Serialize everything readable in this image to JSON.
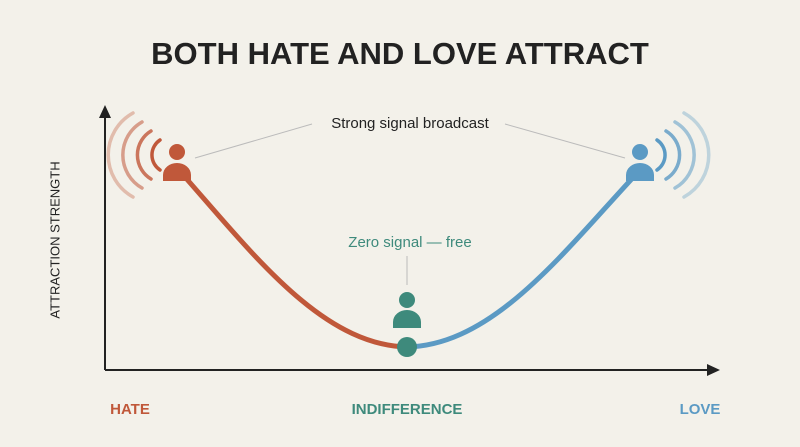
{
  "title": "BOTH HATE AND LOVE ATTRACT",
  "y_axis_label": "ATTRACTION STRENGTH",
  "annotations": {
    "top": "Strong signal broadcast",
    "bottom": "Zero signal — free"
  },
  "x_labels": {
    "left": "HATE",
    "middle": "INDIFFERENCE",
    "right": "LOVE"
  }
}
